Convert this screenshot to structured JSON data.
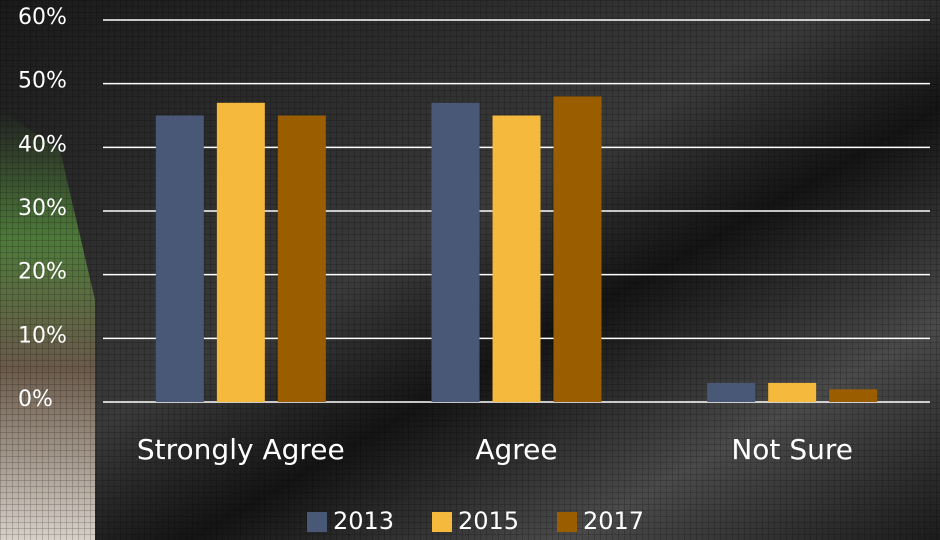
{
  "chart_data": {
    "type": "bar",
    "categories": [
      "Strongly Agree",
      "Agree",
      "Not Sure"
    ],
    "series": [
      {
        "name": "2013",
        "color": "#4a5878",
        "values": [
          45,
          47,
          3
        ]
      },
      {
        "name": "2015",
        "color": "#f5b93e",
        "values": [
          47,
          45,
          3
        ]
      },
      {
        "name": "2017",
        "color": "#9a5e00",
        "values": [
          45,
          48,
          2
        ]
      }
    ],
    "ylim": [
      0,
      60
    ],
    "yticks": [
      {
        "value": 0,
        "label": "0%"
      },
      {
        "value": 10,
        "label": "10%"
      },
      {
        "value": 20,
        "label": "20%"
      },
      {
        "value": 30,
        "label": "30%"
      },
      {
        "value": 40,
        "label": "40%"
      },
      {
        "value": 50,
        "label": "50%"
      },
      {
        "value": 60,
        "label": "60%"
      }
    ],
    "grid": true,
    "legend": "bottom"
  }
}
